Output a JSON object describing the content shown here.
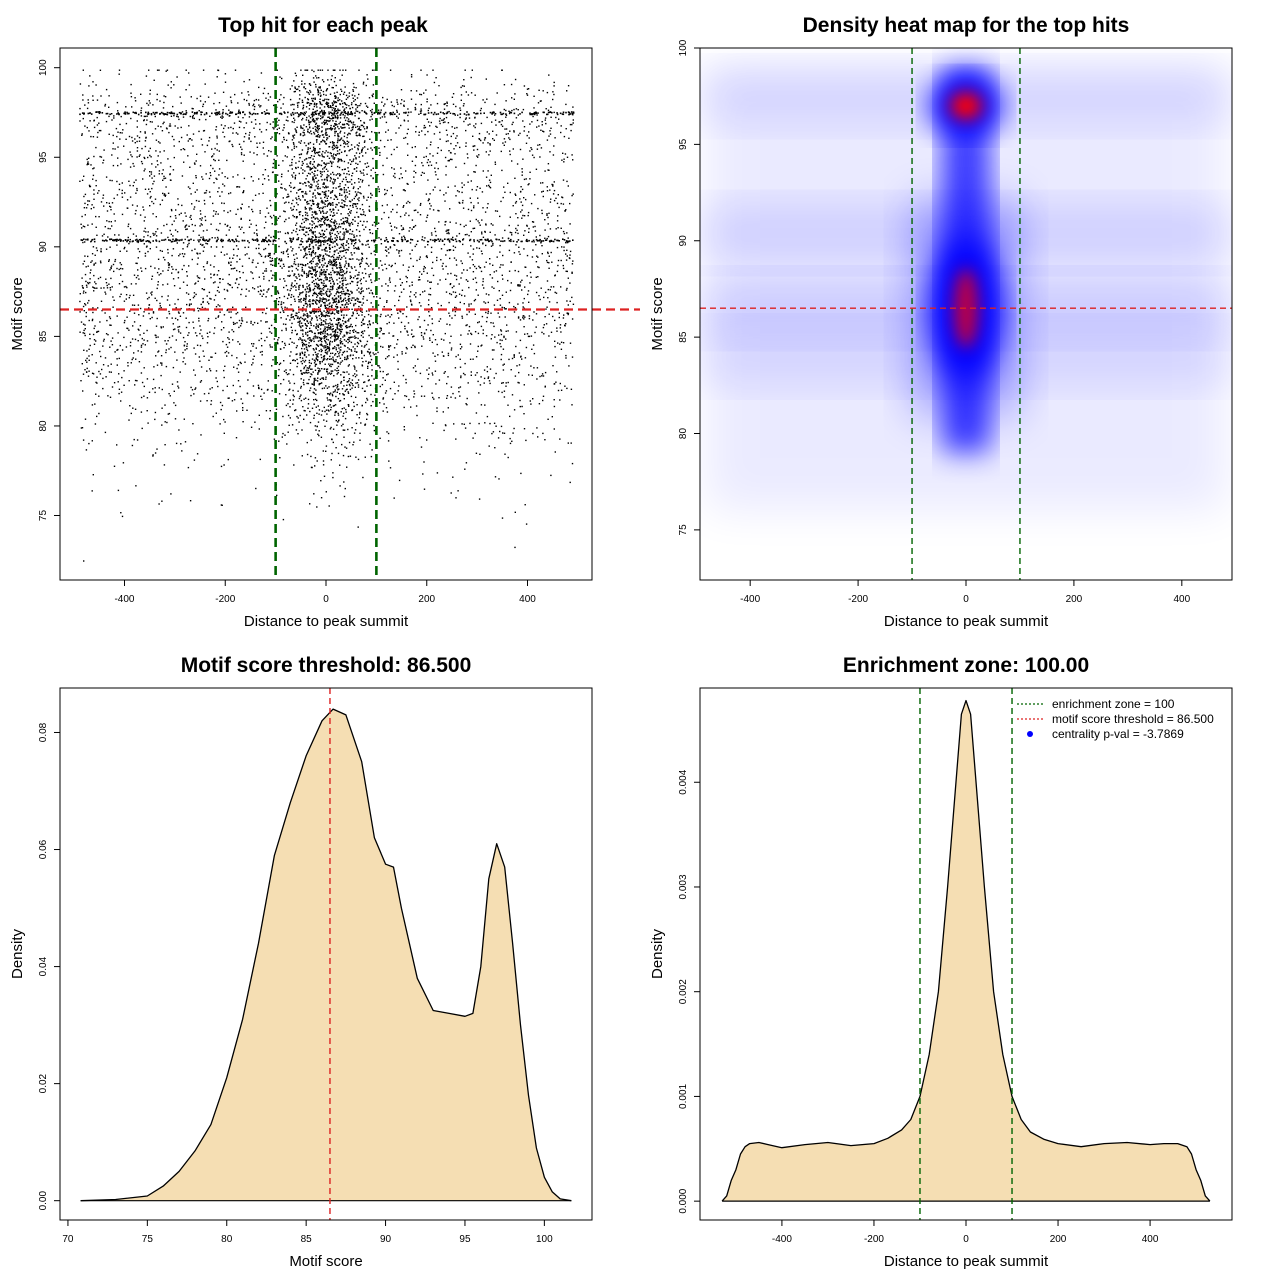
{
  "figure": {
    "background": "#ffffff"
  },
  "chart_data": [
    {
      "id": "scatter",
      "type": "scatter",
      "title": "Top hit for each peak",
      "xlabel": "Distance to peak summit",
      "ylabel": "Motif score",
      "xlim": [
        -528,
        528
      ],
      "ylim": [
        71.4,
        101.1
      ],
      "xticks": [
        -400,
        -200,
        0,
        200,
        400
      ],
      "yticks": [
        75,
        80,
        85,
        90,
        95,
        100
      ],
      "xtick_labels": [
        "-400",
        "-200",
        "0",
        "200",
        "400"
      ],
      "ytick_labels": [
        "75",
        "80",
        "85",
        "90",
        "95",
        "100"
      ],
      "vlines": [
        -100,
        100
      ],
      "hline": 86.5,
      "vline_color": "#006400",
      "hline_color": "#dd2222",
      "point_color": "#000000",
      "n_points": 7000,
      "x_range": [
        -490,
        490
      ],
      "y_range": [
        72.5,
        99.9
      ],
      "dense_rows": [
        97.5,
        90.4
      ]
    },
    {
      "id": "heatmap",
      "type": "heatmap",
      "title": "Density heat map for the top hits",
      "xlabel": "Distance to peak summit",
      "ylabel": "Motif score",
      "xlim": [
        -493,
        493
      ],
      "ylim": [
        72.4,
        100.0
      ],
      "xticks": [
        -400,
        -200,
        0,
        200,
        400
      ],
      "yticks": [
        75,
        80,
        85,
        90,
        95,
        100
      ],
      "xtick_labels": [
        "-400",
        "-200",
        "0",
        "200",
        "400"
      ],
      "ytick_labels": [
        "75",
        "80",
        "85",
        "90",
        "95",
        "100"
      ],
      "vlines": [
        -100,
        100
      ],
      "hline": 86.5,
      "vline_color": "#006400",
      "hline_color": "#dd2222",
      "hot_spots": [
        {
          "x": 0,
          "y": 97.0,
          "intensity": 1.0
        },
        {
          "x": 0,
          "y": 86.5,
          "intensity": 0.75
        }
      ],
      "colors": [
        "#ffffff",
        "#0000ff",
        "#ff0000"
      ]
    },
    {
      "id": "score_density",
      "type": "area",
      "title": "Motif score threshold: 86.500",
      "xlabel": "Motif score",
      "ylabel": "Density",
      "xlim": [
        69.5,
        103
      ],
      "ylim": [
        -0.0033,
        0.0876
      ],
      "xticks": [
        70,
        75,
        80,
        85,
        90,
        95,
        100
      ],
      "yticks": [
        0,
        0.02,
        0.04,
        0.06,
        0.08
      ],
      "xtick_labels": [
        "70",
        "75",
        "80",
        "85",
        "90",
        "95",
        "100"
      ],
      "ytick_labels": [
        "0.00",
        "0.02",
        "0.04",
        "0.06",
        "0.08"
      ],
      "x": [
        70.8,
        73,
        75,
        76,
        77,
        78,
        79,
        80,
        81,
        82,
        83,
        84,
        85,
        86,
        86.7,
        87.5,
        88.5,
        89.3,
        90,
        90.5,
        91,
        92,
        93,
        94,
        95,
        95.5,
        96,
        96.5,
        97,
        97.5,
        98,
        98.5,
        99,
        99.5,
        100,
        100.5,
        101,
        101.7
      ],
      "y": [
        0.0,
        0.0002,
        0.0008,
        0.0025,
        0.005,
        0.0085,
        0.013,
        0.021,
        0.031,
        0.044,
        0.059,
        0.068,
        0.076,
        0.082,
        0.084,
        0.083,
        0.075,
        0.062,
        0.0575,
        0.057,
        0.05,
        0.038,
        0.0325,
        0.032,
        0.0315,
        0.032,
        0.04,
        0.055,
        0.061,
        0.057,
        0.044,
        0.03,
        0.018,
        0.009,
        0.004,
        0.0015,
        0.0003,
        0.0
      ],
      "fill_color": "#f5deb3",
      "line_color": "#000000",
      "vline": 86.5,
      "vline_color": "#dd2222"
    },
    {
      "id": "distance_density",
      "type": "area",
      "title": "Enrichment zone: 100.00",
      "xlabel": "Distance to peak summit",
      "ylabel": "Density",
      "xlim": [
        -578,
        578
      ],
      "ylim": [
        -0.00018,
        0.0049
      ],
      "xticks": [
        -400,
        -200,
        0,
        200,
        400
      ],
      "yticks": [
        0,
        0.001,
        0.002,
        0.003,
        0.004
      ],
      "xtick_labels": [
        "-400",
        "-200",
        "0",
        "200",
        "400"
      ],
      "ytick_labels": [
        "0.000",
        "0.001",
        "0.002",
        "0.003",
        "0.004"
      ],
      "x": [
        -530,
        -520,
        -510,
        -500,
        -490,
        -480,
        -470,
        -450,
        -430,
        -400,
        -350,
        -300,
        -250,
        -200,
        -170,
        -140,
        -120,
        -100,
        -80,
        -60,
        -40,
        -20,
        -10,
        0,
        10,
        20,
        40,
        60,
        80,
        100,
        120,
        140,
        170,
        200,
        250,
        300,
        350,
        400,
        430,
        460,
        480,
        490,
        500,
        510,
        520,
        530
      ],
      "y": [
        0.0,
        5e-05,
        0.0002,
        0.0003,
        0.00045,
        0.00052,
        0.00055,
        0.00056,
        0.00054,
        0.00051,
        0.00054,
        0.00056,
        0.00053,
        0.00055,
        0.0006,
        0.00068,
        0.00078,
        0.001,
        0.0014,
        0.002,
        0.003,
        0.0041,
        0.00465,
        0.00478,
        0.00465,
        0.0041,
        0.003,
        0.002,
        0.0014,
        0.001,
        0.00078,
        0.00066,
        0.00059,
        0.00055,
        0.00052,
        0.00055,
        0.00056,
        0.00054,
        0.00055,
        0.00055,
        0.00052,
        0.00045,
        0.0003,
        0.0002,
        5e-05,
        0.0
      ],
      "fill_color": "#f5deb3",
      "line_color": "#000000",
      "vlines": [
        -100,
        100
      ],
      "vline_color": "#006400",
      "legend": {
        "position": "top-right",
        "entries": [
          {
            "label": "enrichment zone = 100",
            "color": "#006400",
            "symbol": "dotted-line"
          },
          {
            "label": "motif score threshold = 86.500",
            "color": "#dd2222",
            "symbol": "dotted-line"
          },
          {
            "label": "centrality p-val = -3.7869",
            "color": "#0000ff",
            "symbol": "dot"
          }
        ]
      }
    }
  ]
}
